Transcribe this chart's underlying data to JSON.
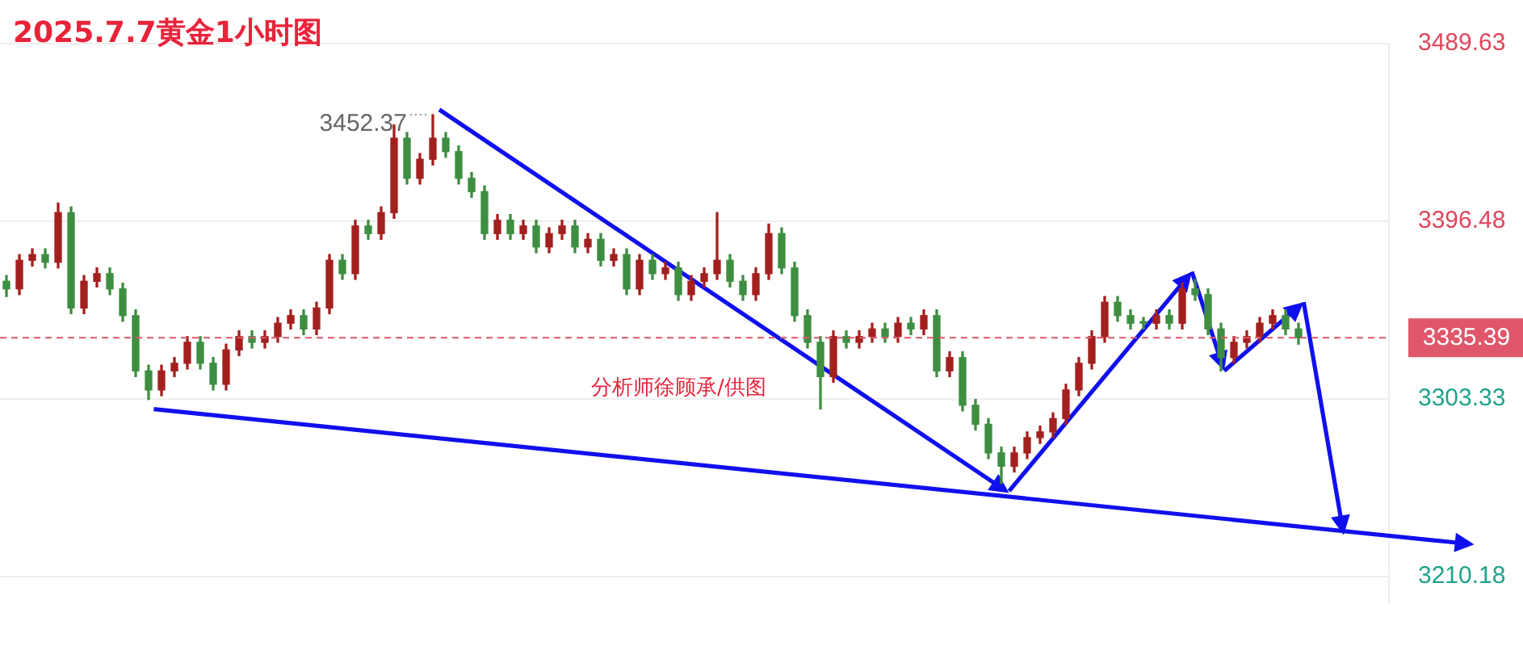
{
  "chart_data": {
    "type": "candlestick",
    "title": "2025.7.7黄金1小时图",
    "annotations": [
      "3452.37",
      "分析师徐顾承/供图"
    ],
    "categories": [
      null,
      null,
      null,
      null,
      null,
      null,
      null,
      null,
      null,
      null,
      null,
      null,
      null,
      null,
      null,
      null,
      null,
      null,
      null,
      null,
      null,
      null,
      null,
      null,
      null,
      null,
      null,
      null,
      null,
      null,
      null,
      null,
      null,
      null,
      null,
      null,
      null,
      null,
      null,
      null,
      null,
      null,
      null,
      null,
      null,
      null,
      null,
      null,
      null,
      null,
      null,
      null,
      null,
      null,
      null,
      null,
      null,
      null,
      null,
      null,
      null,
      null,
      null,
      null,
      null,
      null,
      null,
      null,
      null,
      null,
      null,
      null,
      null,
      null,
      null,
      null,
      null,
      null,
      null,
      null,
      null,
      null,
      null,
      null,
      null,
      null,
      null,
      null,
      null,
      null,
      null,
      null,
      null,
      null,
      null,
      null,
      null,
      null,
      null,
      null,
      null
    ],
    "ohlc": [
      [
        3365,
        3368,
        3357,
        3361
      ],
      [
        3361,
        3379,
        3358,
        3376
      ],
      [
        3376,
        3382,
        3373,
        3379
      ],
      [
        3379,
        3382,
        3372,
        3375
      ],
      [
        3375,
        3406,
        3372,
        3401
      ],
      [
        3401,
        3404,
        3348,
        3351
      ],
      [
        3351,
        3368,
        3348,
        3365
      ],
      [
        3365,
        3372,
        3362,
        3369
      ],
      [
        3369,
        3372,
        3358,
        3361
      ],
      [
        3361,
        3364,
        3344,
        3347
      ],
      [
        3347,
        3350,
        3315,
        3318
      ],
      [
        3318,
        3321,
        3303,
        3308
      ],
      [
        3308,
        3321,
        3305,
        3318
      ],
      [
        3318,
        3325,
        3315,
        3322
      ],
      [
        3322,
        3336,
        3319,
        3333
      ],
      [
        3333,
        3336,
        3319,
        3322
      ],
      [
        3322,
        3325,
        3308,
        3311
      ],
      [
        3311,
        3332,
        3308,
        3329
      ],
      [
        3329,
        3339,
        3326,
        3336
      ],
      [
        3336,
        3339,
        3330,
        3333
      ],
      [
        3333,
        3339,
        3330,
        3336
      ],
      [
        3336,
        3346,
        3333,
        3343
      ],
      [
        3343,
        3350,
        3340,
        3347
      ],
      [
        3347,
        3350,
        3337,
        3340
      ],
      [
        3340,
        3354,
        3337,
        3351
      ],
      [
        3351,
        3379,
        3348,
        3376
      ],
      [
        3376,
        3379,
        3366,
        3369
      ],
      [
        3369,
        3397,
        3366,
        3394
      ],
      [
        3394,
        3397,
        3387,
        3390
      ],
      [
        3390,
        3404,
        3387,
        3401
      ],
      [
        3401,
        3447,
        3398,
        3440
      ],
      [
        3440,
        3443,
        3416,
        3419
      ],
      [
        3419,
        3432,
        3416,
        3429
      ],
      [
        3429,
        3452.37,
        3426,
        3440
      ],
      [
        3440,
        3443,
        3430,
        3433
      ],
      [
        3433,
        3436,
        3416,
        3419
      ],
      [
        3419,
        3422,
        3409,
        3412
      ],
      [
        3412,
        3415,
        3387,
        3390
      ],
      [
        3390,
        3400,
        3387,
        3397
      ],
      [
        3397,
        3400,
        3387,
        3390
      ],
      [
        3390,
        3397,
        3387,
        3394
      ],
      [
        3394,
        3397,
        3380,
        3383
      ],
      [
        3383,
        3393,
        3380,
        3390
      ],
      [
        3390,
        3397,
        3387,
        3394
      ],
      [
        3394,
        3397,
        3380,
        3383
      ],
      [
        3383,
        3390,
        3380,
        3387
      ],
      [
        3387,
        3390,
        3373,
        3376
      ],
      [
        3376,
        3382,
        3373,
        3379
      ],
      [
        3379,
        3382,
        3358,
        3361
      ],
      [
        3361,
        3379,
        3358,
        3376
      ],
      [
        3376,
        3379,
        3366,
        3369
      ],
      [
        3369,
        3375,
        3366,
        3372
      ],
      [
        3372,
        3375,
        3355,
        3358
      ],
      [
        3358,
        3368,
        3355,
        3365
      ],
      [
        3365,
        3372,
        3362,
        3369
      ],
      [
        3369,
        3401,
        3366,
        3376
      ],
      [
        3376,
        3379,
        3362,
        3365
      ],
      [
        3365,
        3368,
        3355,
        3358
      ],
      [
        3358,
        3372,
        3355,
        3369
      ],
      [
        3369,
        3395,
        3366,
        3390
      ],
      [
        3390,
        3393,
        3369,
        3372
      ],
      [
        3372,
        3375,
        3344,
        3347
      ],
      [
        3347,
        3350,
        3330,
        3333
      ],
      [
        3333,
        3336,
        3298,
        3315
      ],
      [
        3315,
        3339,
        3312,
        3336
      ],
      [
        3336,
        3339,
        3330,
        3333
      ],
      [
        3333,
        3339,
        3330,
        3336
      ],
      [
        3336,
        3343,
        3333,
        3340
      ],
      [
        3340,
        3343,
        3333,
        3336
      ],
      [
        3336,
        3346,
        3333,
        3343
      ],
      [
        3343,
        3346,
        3337,
        3340
      ],
      [
        3340,
        3350,
        3337,
        3347
      ],
      [
        3347,
        3350,
        3315,
        3318
      ],
      [
        3318,
        3328,
        3315,
        3325
      ],
      [
        3325,
        3328,
        3297,
        3300
      ],
      [
        3300,
        3303,
        3287,
        3290
      ],
      [
        3290,
        3293,
        3272,
        3275
      ],
      [
        3275,
        3278,
        3259,
        3268
      ],
      [
        3268,
        3278,
        3265,
        3275
      ],
      [
        3275,
        3286,
        3272,
        3283
      ],
      [
        3283,
        3289,
        3280,
        3286
      ],
      [
        3286,
        3296,
        3283,
        3293
      ],
      [
        3293,
        3311,
        3290,
        3308
      ],
      [
        3308,
        3325,
        3305,
        3322
      ],
      [
        3322,
        3339,
        3319,
        3336
      ],
      [
        3336,
        3357,
        3333,
        3354
      ],
      [
        3354,
        3357,
        3344,
        3347
      ],
      [
        3347,
        3350,
        3340,
        3343
      ],
      [
        3343,
        3346,
        3340,
        3343
      ],
      [
        3343,
        3350,
        3340,
        3347
      ],
      [
        3347,
        3350,
        3340,
        3343
      ],
      [
        3343,
        3364,
        3340,
        3361
      ],
      [
        3361,
        3366,
        3355,
        3358
      ],
      [
        3358,
        3361,
        3337,
        3340
      ],
      [
        3340,
        3343,
        3318,
        3325
      ],
      [
        3325,
        3336,
        3322,
        3333
      ],
      [
        3333,
        3339,
        3330,
        3336
      ],
      [
        3336,
        3346,
        3333,
        3343
      ],
      [
        3343,
        3350,
        3340,
        3347
      ],
      [
        3347,
        3350,
        3337,
        3340
      ],
      [
        3340,
        3343,
        3332,
        3335.39
      ]
    ],
    "colors": [
      "#3e8e41",
      "#a3201e",
      "#a3201e",
      "#3e8e41",
      "#a3201e",
      "#3e8e41",
      "#a3201e",
      "#a3201e",
      "#3e8e41",
      "#3e8e41",
      "#3e8e41",
      "#3e8e41",
      "#a3201e",
      "#a3201e",
      "#a3201e",
      "#3e8e41",
      "#3e8e41",
      "#a3201e",
      "#a3201e",
      "#3e8e41",
      "#a3201e",
      "#a3201e",
      "#a3201e",
      "#3e8e41",
      "#a3201e",
      "#a3201e",
      "#3e8e41",
      "#a3201e",
      "#3e8e41",
      "#a3201e",
      "#a3201e",
      "#3e8e41",
      "#a3201e",
      "#a3201e",
      "#3e8e41",
      "#3e8e41",
      "#3e8e41",
      "#3e8e41",
      "#a3201e",
      "#3e8e41",
      "#a3201e",
      "#3e8e41",
      "#a3201e",
      "#a3201e",
      "#3e8e41",
      "#a3201e",
      "#3e8e41",
      "#a3201e",
      "#3e8e41",
      "#a3201e",
      "#3e8e41",
      "#a3201e",
      "#3e8e41",
      "#a3201e",
      "#a3201e",
      "#a3201e",
      "#3e8e41",
      "#3e8e41",
      "#a3201e",
      "#a3201e",
      "#3e8e41",
      "#3e8e41",
      "#3e8e41",
      "#3e8e41",
      "#a3201e",
      "#3e8e41",
      "#a3201e",
      "#a3201e",
      "#3e8e41",
      "#a3201e",
      "#3e8e41",
      "#a3201e",
      "#3e8e41",
      "#a3201e",
      "#3e8e41",
      "#3e8e41",
      "#3e8e41",
      "#3e8e41",
      "#a3201e",
      "#a3201e",
      "#a3201e",
      "#a3201e",
      "#a3201e",
      "#a3201e",
      "#a3201e",
      "#a3201e",
      "#3e8e41",
      "#3e8e41",
      "#3e8e41",
      "#a3201e",
      "#3e8e41",
      "#a3201e",
      "#3e8e41",
      "#3e8e41",
      "#3e8e41",
      "#a3201e",
      "#a3201e",
      "#a3201e",
      "#a3201e",
      "#3e8e41",
      "#3e8e41"
    ],
    "ylim": [
      3196.6,
      3489.63
    ],
    "yticks": [
      3210.18,
      3303.33,
      3396.48,
      3489.63
    ],
    "ref_lines": [
      {
        "axis": "y",
        "value": 3335.39,
        "label": "3335.39",
        "color": "#e0566a",
        "line_style": "dashed"
      }
    ],
    "grid": "y",
    "legend": false,
    "tick_labels": "y"
  }
}
